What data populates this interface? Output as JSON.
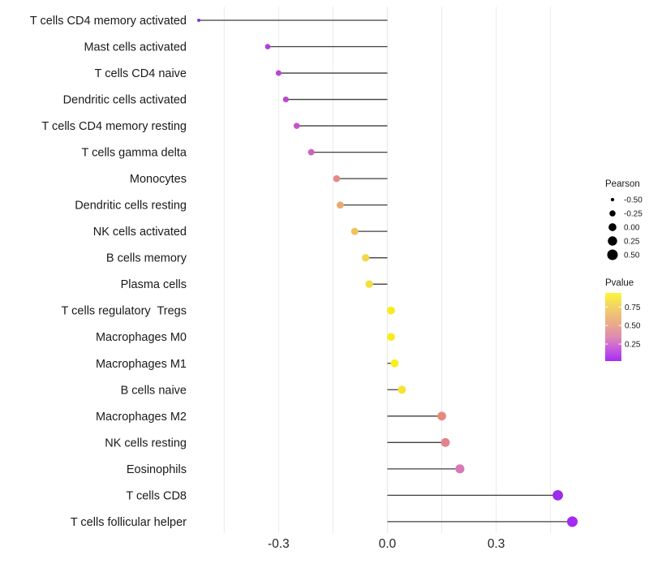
{
  "chart_data": {
    "type": "scatter",
    "variant": "lollipop",
    "title": "",
    "xlabel": "",
    "ylabel": "",
    "xlim": [
      -0.57,
      0.57
    ],
    "x_ticks": [
      -0.3,
      0.0,
      0.3
    ],
    "x_tick_labels": [
      "-0.3",
      "0.0",
      "0.3"
    ],
    "gridline_step": 0.15,
    "grid_color": "#ebebeb",
    "stem_color": "#3f3f3f",
    "axis_text_color": "#262626",
    "label_text_color": "#1a1a1a",
    "rows": [
      {
        "label": "T cells CD4 memory activated",
        "pearson": -0.52,
        "pvalue": 0.05,
        "color": "#8F2BDE"
      },
      {
        "label": "Mast cells activated",
        "pearson": -0.33,
        "pvalue": 0.12,
        "color": "#B23FD6"
      },
      {
        "label": "T cells CD4 naive",
        "pearson": -0.3,
        "pvalue": 0.14,
        "color": "#B845D1"
      },
      {
        "label": "Dendritic cells activated",
        "pearson": -0.28,
        "pvalue": 0.15,
        "color": "#BC49CE"
      },
      {
        "label": "T cells CD4 memory resting",
        "pearson": -0.25,
        "pvalue": 0.18,
        "color": "#C553C8"
      },
      {
        "label": "T cells gamma delta",
        "pearson": -0.21,
        "pvalue": 0.22,
        "color": "#CD63BD"
      },
      {
        "label": "Monocytes",
        "pearson": -0.14,
        "pvalue": 0.45,
        "color": "#E28B85"
      },
      {
        "label": "Dendritic cells resting",
        "pearson": -0.13,
        "pvalue": 0.55,
        "color": "#ECA86C"
      },
      {
        "label": "NK cells activated",
        "pearson": -0.09,
        "pvalue": 0.65,
        "color": "#F0C25A"
      },
      {
        "label": "B cells memory",
        "pearson": -0.06,
        "pvalue": 0.72,
        "color": "#F4D74A"
      },
      {
        "label": "Plasma cells",
        "pearson": -0.05,
        "pvalue": 0.76,
        "color": "#F5DE3E"
      },
      {
        "label": "T cells regulatory  Tregs",
        "pearson": 0.01,
        "pvalue": 0.88,
        "color": "#F8EC1E"
      },
      {
        "label": "Macrophages M0",
        "pearson": 0.01,
        "pvalue": 0.88,
        "color": "#F8EC1E"
      },
      {
        "label": "Macrophages M1",
        "pearson": 0.02,
        "pvalue": 0.9,
        "color": "#F9EF1A"
      },
      {
        "label": "B cells naive",
        "pearson": 0.04,
        "pvalue": 0.8,
        "color": "#F7E335"
      },
      {
        "label": "Macrophages M2",
        "pearson": 0.15,
        "pvalue": 0.48,
        "color": "#E8897E"
      },
      {
        "label": "NK cells resting",
        "pearson": 0.16,
        "pvalue": 0.44,
        "color": "#E3838E"
      },
      {
        "label": "Eosinophils",
        "pearson": 0.2,
        "pvalue": 0.3,
        "color": "#D77AB5"
      },
      {
        "label": "T cells CD8",
        "pearson": 0.47,
        "pvalue": 0.04,
        "color": "#9C2BEE"
      },
      {
        "label": "T cells follicular helper",
        "pearson": 0.51,
        "pvalue": 0.03,
        "color": "#A32BF2"
      }
    ],
    "legend_size": {
      "title": "Pearson",
      "key_color": "#000000",
      "breaks": [
        {
          "label": "-0.50",
          "value": -0.5
        },
        {
          "label": "-0.25",
          "value": -0.25
        },
        {
          "label": "0.00",
          "value": 0.0
        },
        {
          "label": "0.25",
          "value": 0.25
        },
        {
          "label": "0.50",
          "value": 0.5
        }
      ]
    },
    "legend_color": {
      "title": "Pvalue",
      "value_range": [
        0.02,
        0.94
      ],
      "ticks": [
        {
          "label": "0.75",
          "value": 0.75
        },
        {
          "label": "0.50",
          "value": 0.5
        },
        {
          "label": "0.25",
          "value": 0.25
        }
      ],
      "gradient": [
        {
          "offset": "0%",
          "color": "#FBF53C"
        },
        {
          "offset": "22%",
          "color": "#F3CF69"
        },
        {
          "offset": "45%",
          "color": "#EAAB88"
        },
        {
          "offset": "65%",
          "color": "#DE8BB4"
        },
        {
          "offset": "82%",
          "color": "#C75BDE"
        },
        {
          "offset": "100%",
          "color": "#A52FF0"
        }
      ]
    },
    "legend_position": "right",
    "grid": true
  }
}
